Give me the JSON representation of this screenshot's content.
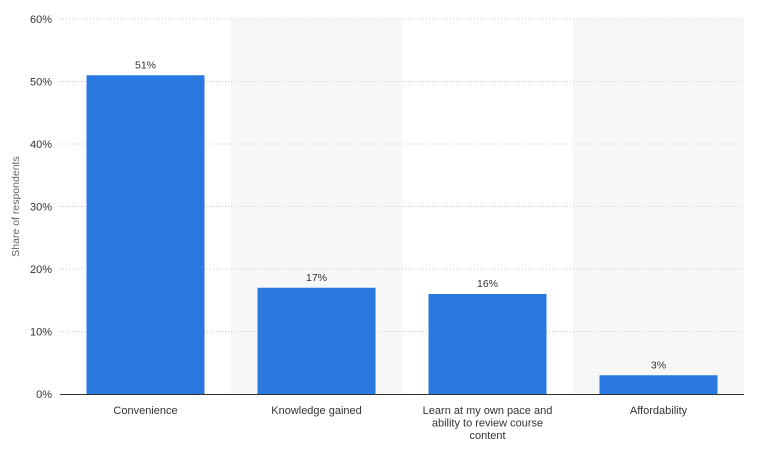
{
  "chart_data": {
    "type": "bar",
    "categories": [
      [
        "Convenience"
      ],
      [
        "Knowledge gained"
      ],
      [
        "Learn at my own pace and",
        "ability to review course",
        "content"
      ],
      [
        "Affordability"
      ]
    ],
    "values": [
      51,
      17,
      16,
      3
    ],
    "data_labels": [
      "51%",
      "17%",
      "16%",
      "3%"
    ],
    "ylabel": "Share of respondents",
    "ylim": [
      0,
      60
    ],
    "yticks": [
      0,
      10,
      20,
      30,
      40,
      50,
      60
    ],
    "ytick_labels": [
      "0%",
      "10%",
      "20%",
      "30%",
      "40%",
      "50%",
      "60%"
    ],
    "grid": true,
    "colors": {
      "bar": "#2878e0",
      "band": "#f7f7f7",
      "grid": "#c8c8c8",
      "axis": "#333333"
    }
  }
}
